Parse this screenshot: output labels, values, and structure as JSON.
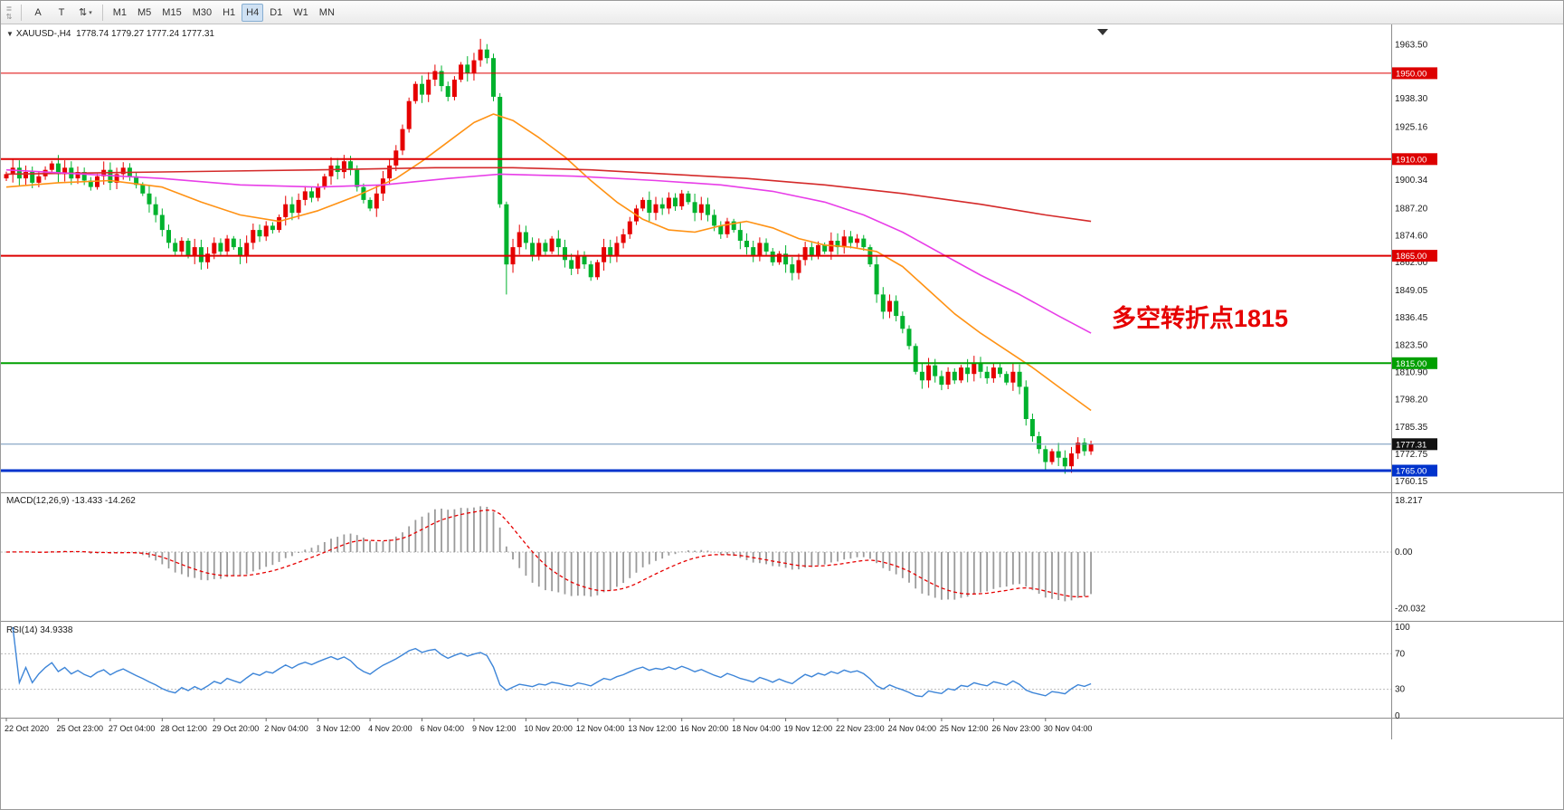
{
  "toolbar": {
    "grip_top": "≣",
    "grip_bottom": "⇅",
    "icon_buttons": [
      {
        "name": "annotation-a-button",
        "label": "A"
      },
      {
        "name": "text-tool-button",
        "label": "T"
      },
      {
        "name": "scale-tool-button",
        "label": "⇅",
        "dropdown": "▾"
      }
    ],
    "timeframes": [
      "M1",
      "M5",
      "M15",
      "M30",
      "H1",
      "H4",
      "D1",
      "W1",
      "MN"
    ],
    "active_timeframe": "H4"
  },
  "header": {
    "collapse_arrow": "▼",
    "symbol": "XAUUSD-,H4",
    "ohlc": "1778.74 1779.27 1777.24 1777.31"
  },
  "indicators": {
    "macd_label": "MACD(12,26,9)",
    "macd_values": "-13.433 -14.262",
    "rsi_label": "RSI(14)",
    "rsi_value": "34.9338"
  },
  "chart_data": {
    "type": "candlestick",
    "symbol": "XAUUSD-",
    "timeframe": "H4",
    "current_candle": {
      "open": 1778.74,
      "high": 1779.27,
      "low": 1777.24,
      "close": 1777.31
    },
    "y_range": [
      1757,
      1971
    ],
    "closes": [
      1903,
      1906,
      1901,
      1904,
      1899,
      1902,
      1905,
      1908,
      1903,
      1906,
      1901,
      1904,
      1900,
      1897,
      1902,
      1905,
      1899,
      1903,
      1906,
      1902,
      1898,
      1894,
      1889,
      1884,
      1877,
      1871,
      1867,
      1872,
      1865,
      1869,
      1862,
      1866,
      1871,
      1867,
      1873,
      1869,
      1865,
      1871,
      1877,
      1874,
      1879,
      1877,
      1883,
      1889,
      1885,
      1891,
      1895,
      1892,
      1897,
      1902,
      1907,
      1904,
      1909,
      1905,
      1897,
      1891,
      1887,
      1894,
      1901,
      1907,
      1914,
      1924,
      1937,
      1945,
      1940,
      1947,
      1951,
      1944,
      1939,
      1947,
      1954,
      1950,
      1956,
      1961,
      1957,
      1939,
      1889,
      1861,
      1869,
      1876,
      1871,
      1865,
      1871,
      1867,
      1873,
      1869,
      1863,
      1859,
      1865,
      1861,
      1855,
      1862,
      1869,
      1865,
      1871,
      1875,
      1881,
      1887,
      1891,
      1885,
      1889,
      1887,
      1892,
      1888,
      1894,
      1890,
      1885,
      1889,
      1884,
      1879,
      1875,
      1881,
      1877,
      1872,
      1869,
      1865,
      1871,
      1867,
      1862,
      1866,
      1861,
      1857,
      1863,
      1869,
      1865,
      1870,
      1867,
      1872,
      1869,
      1874,
      1871,
      1873,
      1869,
      1861,
      1847,
      1839,
      1844,
      1837,
      1831,
      1823,
      1811,
      1807,
      1814,
      1809,
      1805,
      1811,
      1807,
      1813,
      1810,
      1815,
      1811,
      1808,
      1813,
      1810,
      1806,
      1811,
      1804,
      1789,
      1781,
      1775,
      1769,
      1774,
      1771,
      1767,
      1773,
      1778,
      1774,
      1777.31
    ],
    "wick_overrides": {
      "73": {
        "high": 1966
      },
      "77": {
        "low": 1847
      },
      "160": {
        "low": 1765.5
      }
    },
    "levels": [
      {
        "price": 1950,
        "label": "1950.00",
        "color": "#dd0000",
        "width": 1
      },
      {
        "price": 1910,
        "label": "1910.00",
        "color": "#dd0000",
        "width": 2
      },
      {
        "price": 1865,
        "label": "1865.00",
        "color": "#dd0000",
        "width": 2
      },
      {
        "price": 1815,
        "label": "1815.00",
        "color": "#00a000",
        "width": 2
      },
      {
        "price": 1765,
        "label": "1765.00",
        "color": "#0033cc",
        "width": 3
      }
    ],
    "current_price": {
      "value": 1777.31,
      "label": "1777.31",
      "line_color": "#6e93b9",
      "badge_bg": "#111111"
    },
    "y_ticks": [
      "1760.15",
      "1772.75",
      "1785.35",
      "1798.20",
      "1810.90",
      "1823.50",
      "1836.45",
      "1849.05",
      "1862.00",
      "1874.60",
      "1887.20",
      "1900.34",
      "1925.16",
      "1938.30",
      "1963.50"
    ],
    "x_labels": [
      "22 Oct 2020",
      "25 Oct 23:00",
      "27 Oct 04:00",
      "28 Oct 12:00",
      "29 Oct 20:00",
      "2 Nov 04:00",
      "3 Nov 12:00",
      "4 Nov 20:00",
      "6 Nov 04:00",
      "9 Nov 12:00",
      "10 Nov 20:00",
      "12 Nov 04:00",
      "13 Nov 12:00",
      "16 Nov 20:00",
      "18 Nov 04:00",
      "19 Nov 12:00",
      "22 Nov 23:00",
      "24 Nov 04:00",
      "25 Nov 12:00",
      "26 Nov 23:00",
      "30 Nov 04:00"
    ],
    "moving_averages": [
      {
        "name": "ma-fast-orange",
        "color": "#ff9214",
        "points": [
          [
            0,
            1897
          ],
          [
            8,
            1899
          ],
          [
            16,
            1900
          ],
          [
            24,
            1897
          ],
          [
            30,
            1890
          ],
          [
            36,
            1884
          ],
          [
            42,
            1881
          ],
          [
            48,
            1886
          ],
          [
            54,
            1893
          ],
          [
            60,
            1901
          ],
          [
            64,
            1909
          ],
          [
            68,
            1918
          ],
          [
            72,
            1927
          ],
          [
            75,
            1931
          ],
          [
            78,
            1928
          ],
          [
            82,
            1920
          ],
          [
            86,
            1911
          ],
          [
            90,
            1900
          ],
          [
            94,
            1890
          ],
          [
            98,
            1882
          ],
          [
            102,
            1877
          ],
          [
            106,
            1876
          ],
          [
            110,
            1879
          ],
          [
            114,
            1881
          ],
          [
            118,
            1878
          ],
          [
            122,
            1873
          ],
          [
            126,
            1870
          ],
          [
            130,
            1869
          ],
          [
            134,
            1867
          ],
          [
            138,
            1860
          ],
          [
            142,
            1849
          ],
          [
            146,
            1838
          ],
          [
            150,
            1829
          ],
          [
            154,
            1821
          ],
          [
            158,
            1813
          ],
          [
            162,
            1804
          ],
          [
            167,
            1793
          ]
        ]
      },
      {
        "name": "ma-slow-red",
        "color": "#d42a2a",
        "points": [
          [
            0,
            1903
          ],
          [
            24,
            1904
          ],
          [
            48,
            1905
          ],
          [
            66,
            1906
          ],
          [
            78,
            1906
          ],
          [
            90,
            1905
          ],
          [
            102,
            1903
          ],
          [
            114,
            1901
          ],
          [
            126,
            1898
          ],
          [
            138,
            1894
          ],
          [
            150,
            1889
          ],
          [
            160,
            1884
          ],
          [
            167,
            1881
          ]
        ]
      },
      {
        "name": "ma-mid-magenta",
        "color": "#e83ee8",
        "points": [
          [
            0,
            1905
          ],
          [
            12,
            1903
          ],
          [
            24,
            1901
          ],
          [
            36,
            1898
          ],
          [
            48,
            1897
          ],
          [
            58,
            1898
          ],
          [
            68,
            1901
          ],
          [
            76,
            1903
          ],
          [
            88,
            1902
          ],
          [
            100,
            1900
          ],
          [
            110,
            1898
          ],
          [
            118,
            1895
          ],
          [
            126,
            1890
          ],
          [
            132,
            1884
          ],
          [
            138,
            1876
          ],
          [
            144,
            1866
          ],
          [
            150,
            1856
          ],
          [
            156,
            1847
          ],
          [
            162,
            1837
          ],
          [
            167,
            1829
          ]
        ]
      }
    ],
    "macd": {
      "params": "12,26,9",
      "readout": "-13.433 -14.262",
      "axis_ticks": [
        {
          "v": 18.217,
          "t": "18.217"
        },
        {
          "v": 0,
          "t": "0.00"
        },
        {
          "v": -20.032,
          "t": "-20.032"
        }
      ]
    },
    "rsi": {
      "period": 14,
      "readout": "34.9338",
      "levels": [
        70,
        30
      ],
      "axis_ticks": [
        {
          "v": 100,
          "t": "100"
        },
        {
          "v": 70,
          "t": "70"
        },
        {
          "v": 30,
          "t": "30"
        },
        {
          "v": 0,
          "t": "0"
        }
      ]
    },
    "annotation": {
      "text": "多空转折点1815",
      "color": "#e60000"
    },
    "colors": {
      "up": "#e60000",
      "down": "#00b22d",
      "histogram": "#9a9a9a",
      "signal": "#e60000",
      "rsi_line": "#3d85d8",
      "grid": "#bbbbbb",
      "separator": "#8c8c8c"
    }
  }
}
